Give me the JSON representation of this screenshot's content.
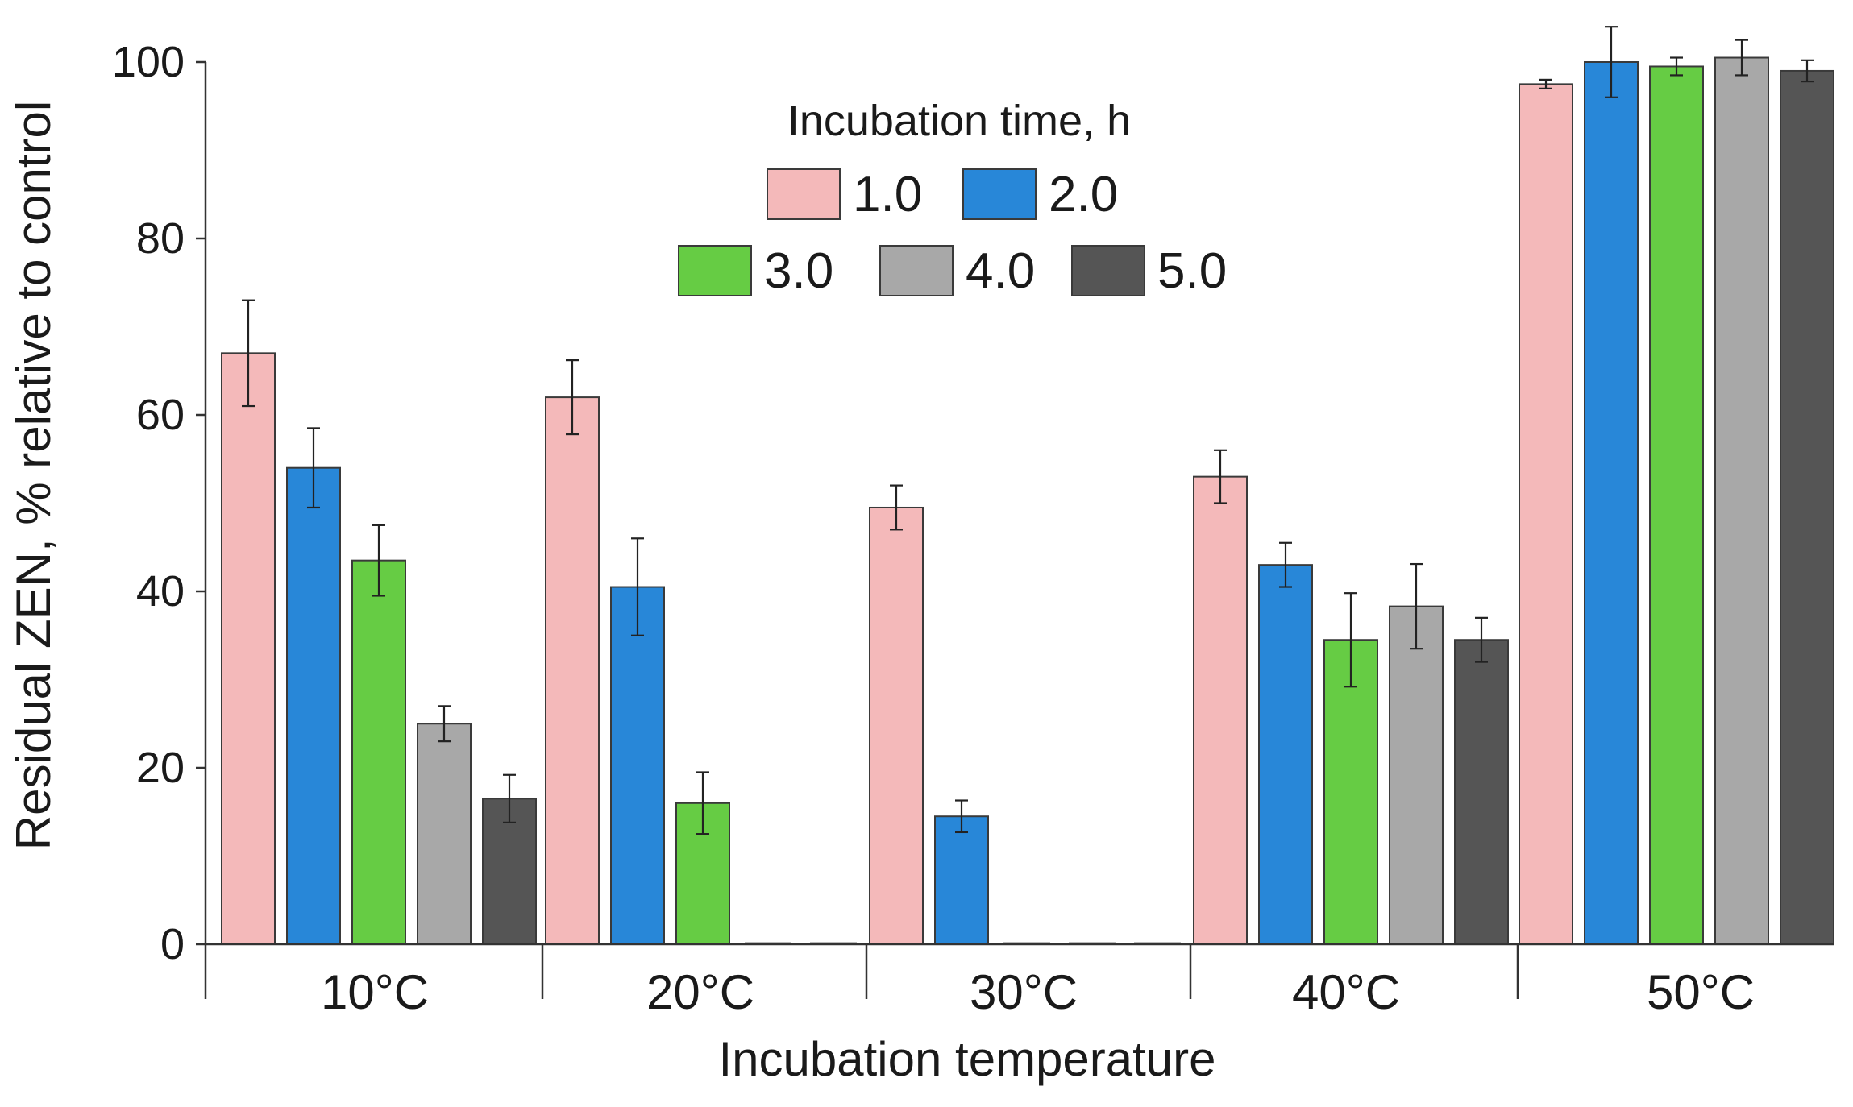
{
  "chart_data": {
    "type": "bar",
    "title": "",
    "xlabel": "Incubation temperature",
    "ylabel": "Residual ZEN, % relative to control",
    "ylim": [
      0,
      100
    ],
    "yticks": [
      0,
      20,
      40,
      60,
      80,
      100
    ],
    "grid": false,
    "legend": {
      "title": "Incubation time, h",
      "position": "top-center"
    },
    "categories": [
      "10°C",
      "20°C",
      "30°C",
      "40°C",
      "50°C"
    ],
    "series": [
      {
        "name": "1.0",
        "color": "#f4b9ba",
        "values": [
          67,
          62,
          49.5,
          53,
          97.5
        ],
        "errors": [
          6,
          4.2,
          2.5,
          3,
          0.5
        ]
      },
      {
        "name": "2.0",
        "color": "#2887d8",
        "values": [
          54,
          40.5,
          14.5,
          43,
          100
        ],
        "errors": [
          4.5,
          5.5,
          1.8,
          2.5,
          4
        ]
      },
      {
        "name": "3.0",
        "color": "#66cc44",
        "values": [
          43.5,
          16,
          0,
          34.5,
          99.5
        ],
        "errors": [
          4,
          3.5,
          0,
          5.3,
          1
        ]
      },
      {
        "name": "4.0",
        "color": "#a8a8a8",
        "values": [
          25,
          0,
          0,
          38.3,
          100.5
        ],
        "errors": [
          2,
          0,
          0,
          4.8,
          2
        ]
      },
      {
        "name": "5.0",
        "color": "#555555",
        "values": [
          16.5,
          0,
          0,
          34.5,
          99
        ],
        "errors": [
          2.7,
          0,
          0,
          2.5,
          1.2
        ]
      }
    ]
  }
}
